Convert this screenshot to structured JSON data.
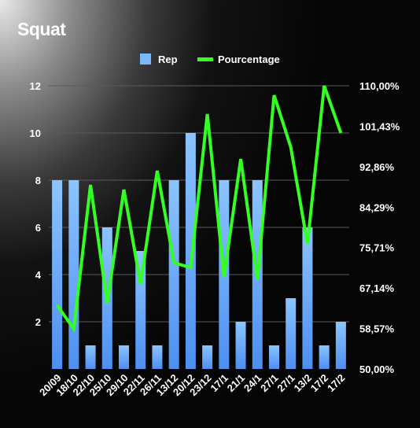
{
  "title": "Squat",
  "chart_data": {
    "type": "bar",
    "title": "Squat",
    "categories": [
      "20/09",
      "18/10",
      "22/10",
      "25/10",
      "29/10",
      "22/11",
      "26/11",
      "13/12",
      "20/12",
      "23/12",
      "17/1",
      "21/1",
      "24/1",
      "27/1",
      "27/1",
      "13/2",
      "17/2",
      "17/2"
    ],
    "series": [
      {
        "name": "Rep",
        "type": "bar",
        "axis": "left",
        "color": "#7ab8ff",
        "values": [
          8,
          8,
          1,
          6,
          1,
          5,
          1,
          8,
          10,
          1,
          8,
          2,
          8,
          1,
          3,
          6,
          1,
          2
        ]
      },
      {
        "name": "Pourcentage",
        "type": "line",
        "axis": "right",
        "color": "#33ff22",
        "values": [
          63.5,
          58.5,
          89,
          64,
          88,
          68,
          92,
          72.5,
          71.5,
          104,
          69.5,
          94.5,
          69,
          108,
          97,
          76.5,
          110,
          100
        ]
      }
    ],
    "y_left": {
      "min": 0,
      "max": 12,
      "ticks": [
        2,
        4,
        6,
        8,
        10,
        12
      ],
      "tick_labels": [
        "2",
        "4",
        "6",
        "8",
        "10",
        "12"
      ]
    },
    "y_right": {
      "min": 50,
      "max": 110,
      "ticks": [
        50,
        58.57,
        67.14,
        75.71,
        84.29,
        92.86,
        101.43,
        110
      ],
      "tick_labels": [
        "50,00%",
        "58,57%",
        "67,14%",
        "75,71%",
        "84,29%",
        "92,86%",
        "101,43%",
        "110,00%"
      ]
    },
    "grid": true,
    "legend_position": "top-center",
    "xlabel": "",
    "ylabel": ""
  }
}
